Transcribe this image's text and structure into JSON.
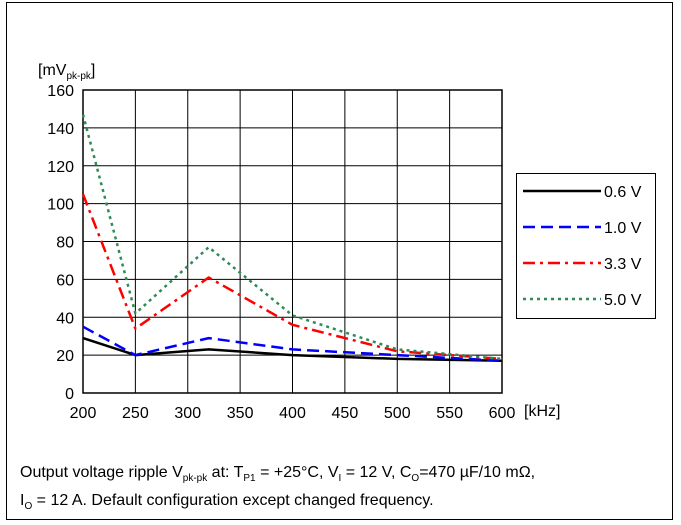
{
  "chart_data": {
    "type": "line",
    "x": [
      200,
      250,
      320,
      400,
      500,
      600
    ],
    "xlim": [
      200,
      600
    ],
    "ylim": [
      0,
      160
    ],
    "x_ticks": [
      200,
      250,
      300,
      350,
      400,
      450,
      500,
      550,
      600
    ],
    "y_ticks": [
      0,
      20,
      40,
      60,
      80,
      100,
      120,
      140,
      160
    ],
    "xlabel": "[kHz]",
    "ylabel_main": "[mV",
    "ylabel_sub": "pk-pk",
    "ylabel_end": "]",
    "grid": true,
    "legend_placement": "right",
    "series": [
      {
        "name": "0.6 V",
        "color": "#000000",
        "style": "solid",
        "values": [
          29,
          20,
          23,
          20,
          18,
          17
        ]
      },
      {
        "name": "1.0 V",
        "color": "#0000ff",
        "style": "dashed",
        "values": [
          35,
          20,
          29,
          23,
          20,
          17
        ]
      },
      {
        "name": "3.3 V",
        "color": "#ff0000",
        "style": "dashdot",
        "values": [
          105,
          34,
          61,
          36,
          22,
          18
        ]
      },
      {
        "name": "5.0 V",
        "color": "#2e8b57",
        "style": "dotted",
        "values": [
          147,
          42,
          77,
          41,
          23,
          18
        ]
      }
    ]
  },
  "caption": {
    "line1_a": "Output voltage ripple V",
    "line1_sub1": "pk-pk",
    "line1_b": " at: T",
    "line1_sub2": "P1",
    "line1_c": " = +25°C, V",
    "line1_sub3": "I",
    "line1_d": " = 12 V, C",
    "line1_sub4": "O",
    "line1_e": "=470 µF/10 mΩ,",
    "line2_a": "I",
    "line2_sub": "O",
    "line2_b": " = 12 A. Default configuration except changed frequency."
  }
}
